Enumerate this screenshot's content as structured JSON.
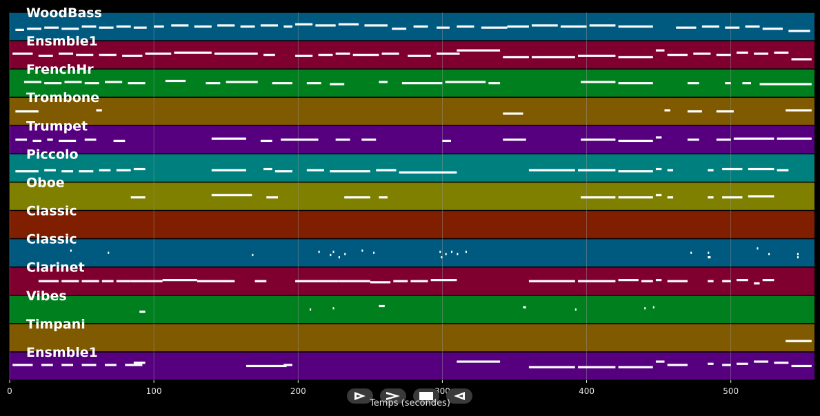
{
  "chart_data": {
    "type": "piano-roll",
    "xlabel": "Temps (secondes)",
    "xlim": [
      0,
      558
    ],
    "xticks": [
      0,
      100,
      200,
      300,
      400,
      500
    ],
    "grid": true,
    "colors": {
      "background": "#000000",
      "grid": "#9a9a9a",
      "note": "#ffffff",
      "label": "#ffffff",
      "tick": "#e6e6e6"
    },
    "tracks": [
      {
        "name": "WoodBass",
        "color": "#005a7f",
        "notes": [
          [
            4,
            10,
            0.35
          ],
          [
            12,
            22,
            0.4
          ],
          [
            24,
            34,
            0.45
          ],
          [
            36,
            48,
            0.4
          ],
          [
            50,
            60,
            0.5
          ],
          [
            62,
            72,
            0.45
          ],
          [
            74,
            84,
            0.5
          ],
          [
            86,
            95,
            0.45
          ],
          [
            100,
            107,
            0.5
          ],
          [
            112,
            124,
            0.55
          ],
          [
            128,
            140,
            0.5
          ],
          [
            144,
            156,
            0.55
          ],
          [
            160,
            170,
            0.5
          ],
          [
            174,
            186,
            0.55
          ],
          [
            190,
            196,
            0.5
          ],
          [
            198,
            210,
            0.6
          ],
          [
            212,
            226,
            0.55
          ],
          [
            228,
            242,
            0.6
          ],
          [
            246,
            262,
            0.55
          ],
          [
            265,
            275,
            0.4
          ],
          [
            280,
            290,
            0.5
          ],
          [
            296,
            305,
            0.45
          ],
          [
            310,
            322,
            0.5
          ],
          [
            327,
            345,
            0.45
          ],
          [
            345,
            360,
            0.5
          ],
          [
            362,
            380,
            0.55
          ],
          [
            382,
            400,
            0.5
          ],
          [
            402,
            420,
            0.55
          ],
          [
            422,
            446,
            0.5
          ],
          [
            462,
            476,
            0.45
          ],
          [
            480,
            492,
            0.5
          ],
          [
            496,
            506,
            0.45
          ],
          [
            510,
            520,
            0.5
          ],
          [
            522,
            536,
            0.4
          ],
          [
            540,
            555,
            0.3
          ]
        ]
      },
      {
        "name": "Ensmble1",
        "color": "#7f002f",
        "notes": [
          [
            2,
            16,
            0.55
          ],
          [
            20,
            30,
            0.45
          ],
          [
            34,
            44,
            0.55
          ],
          [
            46,
            58,
            0.5
          ],
          [
            62,
            74,
            0.5
          ],
          [
            78,
            92,
            0.45
          ],
          [
            94,
            112,
            0.55
          ],
          [
            114,
            140,
            0.6
          ],
          [
            142,
            172,
            0.55
          ],
          [
            176,
            184,
            0.5
          ],
          [
            198,
            210,
            0.45
          ],
          [
            214,
            224,
            0.5
          ],
          [
            226,
            236,
            0.55
          ],
          [
            238,
            256,
            0.5
          ],
          [
            258,
            270,
            0.55
          ],
          [
            276,
            292,
            0.45
          ],
          [
            296,
            312,
            0.55
          ],
          [
            310,
            340,
            0.7
          ],
          [
            342,
            360,
            0.4
          ],
          [
            362,
            392,
            0.4
          ],
          [
            394,
            420,
            0.45
          ],
          [
            422,
            446,
            0.4
          ],
          [
            448,
            454,
            0.7
          ],
          [
            456,
            470,
            0.5
          ],
          [
            474,
            486,
            0.55
          ],
          [
            490,
            500,
            0.5
          ],
          [
            504,
            512,
            0.6
          ],
          [
            516,
            526,
            0.55
          ],
          [
            530,
            540,
            0.6
          ],
          [
            542,
            556,
            0.3
          ]
        ]
      },
      {
        "name": "FrenchHr",
        "color": "#007f1f",
        "notes": [
          [
            10,
            22,
            0.55
          ],
          [
            24,
            36,
            0.5
          ],
          [
            38,
            50,
            0.55
          ],
          [
            52,
            62,
            0.5
          ],
          [
            66,
            78,
            0.55
          ],
          [
            82,
            94,
            0.5
          ],
          [
            108,
            122,
            0.6
          ],
          [
            136,
            146,
            0.5
          ],
          [
            150,
            172,
            0.55
          ],
          [
            182,
            196,
            0.5
          ],
          [
            206,
            216,
            0.5
          ],
          [
            222,
            232,
            0.45
          ],
          [
            256,
            262,
            0.55
          ],
          [
            272,
            300,
            0.5
          ],
          [
            302,
            330,
            0.55
          ],
          [
            332,
            340,
            0.5
          ],
          [
            396,
            420,
            0.55
          ],
          [
            422,
            446,
            0.5
          ],
          [
            470,
            478,
            0.5
          ],
          [
            496,
            500,
            0.5
          ],
          [
            508,
            514,
            0.5
          ],
          [
            520,
            556,
            0.45
          ]
        ]
      },
      {
        "name": "Trombone",
        "color": "#7f5a00",
        "notes": [
          [
            4,
            20,
            0.5
          ],
          [
            60,
            64,
            0.55
          ],
          [
            342,
            356,
            0.4
          ],
          [
            454,
            458,
            0.55
          ],
          [
            470,
            480,
            0.5
          ],
          [
            490,
            502,
            0.5
          ],
          [
            538,
            556,
            0.55
          ]
        ]
      },
      {
        "name": "Trumpet",
        "color": "#56007f",
        "notes": [
          [
            4,
            12,
            0.5
          ],
          [
            16,
            22,
            0.45
          ],
          [
            26,
            30,
            0.5
          ],
          [
            34,
            46,
            0.45
          ],
          [
            52,
            60,
            0.5
          ],
          [
            72,
            80,
            0.45
          ],
          [
            140,
            164,
            0.55
          ],
          [
            174,
            182,
            0.45
          ],
          [
            188,
            214,
            0.5
          ],
          [
            226,
            236,
            0.5
          ],
          [
            244,
            254,
            0.5
          ],
          [
            300,
            306,
            0.45
          ],
          [
            342,
            358,
            0.5
          ],
          [
            396,
            420,
            0.5
          ],
          [
            422,
            446,
            0.45
          ],
          [
            448,
            452,
            0.6
          ],
          [
            470,
            478,
            0.5
          ],
          [
            490,
            500,
            0.5
          ],
          [
            502,
            530,
            0.55
          ],
          [
            532,
            556,
            0.55
          ]
        ]
      },
      {
        "name": "Piccolo",
        "color": "#007f7f",
        "notes": [
          [
            4,
            20,
            0.35
          ],
          [
            24,
            32,
            0.4
          ],
          [
            36,
            44,
            0.35
          ],
          [
            48,
            58,
            0.35
          ],
          [
            62,
            70,
            0.4
          ],
          [
            74,
            84,
            0.4
          ],
          [
            86,
            94,
            0.45
          ],
          [
            140,
            164,
            0.4
          ],
          [
            176,
            182,
            0.45
          ],
          [
            184,
            196,
            0.35
          ],
          [
            206,
            218,
            0.4
          ],
          [
            222,
            250,
            0.35
          ],
          [
            254,
            268,
            0.4
          ],
          [
            270,
            310,
            0.3
          ],
          [
            360,
            392,
            0.4
          ],
          [
            394,
            420,
            0.4
          ],
          [
            422,
            446,
            0.35
          ],
          [
            448,
            452,
            0.45
          ],
          [
            456,
            460,
            0.4
          ],
          [
            484,
            488,
            0.4
          ],
          [
            494,
            508,
            0.45
          ],
          [
            512,
            530,
            0.45
          ],
          [
            532,
            540,
            0.4
          ]
        ]
      },
      {
        "name": "Oboe",
        "color": "#7f7f00",
        "notes": [
          [
            84,
            94,
            0.45
          ],
          [
            140,
            168,
            0.55
          ],
          [
            178,
            186,
            0.45
          ],
          [
            232,
            250,
            0.45
          ],
          [
            256,
            262,
            0.45
          ],
          [
            396,
            420,
            0.45
          ],
          [
            422,
            446,
            0.45
          ],
          [
            448,
            452,
            0.55
          ],
          [
            456,
            460,
            0.45
          ],
          [
            484,
            488,
            0.45
          ],
          [
            494,
            508,
            0.45
          ],
          [
            512,
            520,
            0.5
          ],
          [
            520,
            530,
            0.5
          ]
        ]
      },
      {
        "name": "Classic",
        "color": "#7f1f00",
        "notes": []
      },
      {
        "name": "Classic",
        "color": "#005a7f",
        "notes": [
          [
            42,
            43,
            0.6
          ],
          [
            68,
            69,
            0.5
          ],
          [
            168,
            169,
            0.4
          ],
          [
            214,
            215,
            0.55
          ],
          [
            222,
            223,
            0.4
          ],
          [
            224,
            225,
            0.55
          ],
          [
            228,
            229,
            0.3
          ],
          [
            232,
            233,
            0.45
          ],
          [
            244,
            245,
            0.6
          ],
          [
            252,
            253,
            0.5
          ],
          [
            298,
            299,
            0.55
          ],
          [
            299,
            300,
            0.3
          ],
          [
            302,
            303,
            0.45
          ],
          [
            306,
            307,
            0.55
          ],
          [
            310,
            311,
            0.45
          ],
          [
            316,
            317,
            0.55
          ],
          [
            472,
            473,
            0.5
          ],
          [
            484,
            485,
            0.5
          ],
          [
            484,
            486,
            0.3
          ],
          [
            518,
            519,
            0.7
          ],
          [
            526,
            527,
            0.45
          ],
          [
            546,
            547,
            0.45
          ],
          [
            546,
            547,
            0.3
          ]
        ]
      },
      {
        "name": "Clarinet",
        "color": "#7f002f",
        "notes": [
          [
            20,
            34,
            0.5
          ],
          [
            36,
            48,
            0.5
          ],
          [
            50,
            62,
            0.5
          ],
          [
            64,
            72,
            0.5
          ],
          [
            74,
            84,
            0.5
          ],
          [
            84,
            94,
            0.5
          ],
          [
            94,
            106,
            0.5
          ],
          [
            106,
            130,
            0.55
          ],
          [
            130,
            156,
            0.5
          ],
          [
            170,
            178,
            0.5
          ],
          [
            198,
            228,
            0.5
          ],
          [
            228,
            250,
            0.5
          ],
          [
            250,
            264,
            0.45
          ],
          [
            266,
            276,
            0.5
          ],
          [
            278,
            290,
            0.5
          ],
          [
            292,
            310,
            0.55
          ],
          [
            360,
            392,
            0.5
          ],
          [
            394,
            420,
            0.5
          ],
          [
            422,
            436,
            0.55
          ],
          [
            438,
            446,
            0.5
          ],
          [
            448,
            452,
            0.55
          ],
          [
            456,
            470,
            0.5
          ],
          [
            484,
            488,
            0.5
          ],
          [
            494,
            500,
            0.5
          ],
          [
            504,
            512,
            0.55
          ],
          [
            516,
            520,
            0.4
          ],
          [
            522,
            530,
            0.55
          ]
        ]
      },
      {
        "name": "Vibes",
        "color": "#007f1f",
        "notes": [
          [
            90,
            94,
            0.4
          ],
          [
            208,
            209,
            0.5
          ],
          [
            224,
            225,
            0.55
          ],
          [
            256,
            260,
            0.65
          ],
          [
            356,
            358,
            0.6
          ],
          [
            392,
            393,
            0.5
          ],
          [
            440,
            441,
            0.55
          ],
          [
            446,
            447,
            0.6
          ]
        ]
      },
      {
        "name": "Timpani",
        "color": "#7f5a00",
        "notes": [
          [
            538,
            556,
            0.35
          ]
        ]
      },
      {
        "name": "Ensmble1",
        "color": "#56007f",
        "notes": [
          [
            2,
            16,
            0.55
          ],
          [
            22,
            30,
            0.55
          ],
          [
            36,
            44,
            0.55
          ],
          [
            50,
            60,
            0.55
          ],
          [
            66,
            74,
            0.55
          ],
          [
            80,
            92,
            0.55
          ],
          [
            86,
            94,
            0.65
          ],
          [
            164,
            192,
            0.5
          ],
          [
            190,
            196,
            0.55
          ],
          [
            310,
            340,
            0.7
          ],
          [
            360,
            392,
            0.45
          ],
          [
            394,
            420,
            0.45
          ],
          [
            422,
            446,
            0.45
          ],
          [
            448,
            454,
            0.7
          ],
          [
            456,
            470,
            0.55
          ],
          [
            484,
            488,
            0.6
          ],
          [
            494,
            500,
            0.55
          ],
          [
            504,
            512,
            0.6
          ],
          [
            516,
            526,
            0.7
          ],
          [
            530,
            540,
            0.65
          ],
          [
            542,
            556,
            0.5
          ]
        ]
      }
    ]
  },
  "controls": {
    "play_glyph": "⊳",
    "next_glyph": ">",
    "stop_glyph": "■",
    "back_glyph": "◅"
  }
}
